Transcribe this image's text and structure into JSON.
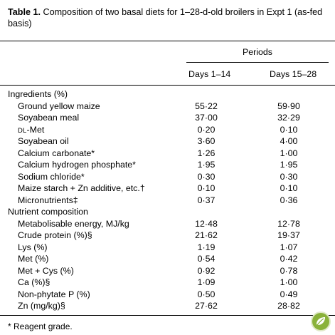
{
  "caption": {
    "label": "Table 1.",
    "text": " Composition of two basal diets for 1–28-d-old broilers in Expt 1 (as-fed basis)"
  },
  "header": {
    "group": "Periods",
    "col1": "Days 1–14",
    "col2": "Days 15–28"
  },
  "rows": [
    {
      "label": "Ingredients (%)",
      "v1": "",
      "v2": "",
      "section": true
    },
    {
      "label": "Ground yellow maize",
      "v1": "55·22",
      "v2": "59·90"
    },
    {
      "label": "Soyabean meal",
      "v1": "37·00",
      "v2": "32·29"
    },
    {
      "label_sc": "DL",
      "label_rest": "-Met",
      "v1": "0·20",
      "v2": "0·10"
    },
    {
      "label": "Soyabean oil",
      "v1": "3·60",
      "v2": "4·00"
    },
    {
      "label": "Calcium carbonate*",
      "v1": "1·26",
      "v2": "1·00"
    },
    {
      "label": "Calcium hydrogen phosphate*",
      "v1": "1·95",
      "v2": "1·95"
    },
    {
      "label": "Sodium chloride*",
      "v1": "0·30",
      "v2": "0·30"
    },
    {
      "label": "Maize starch + Zn additive, etc.†",
      "v1": "0·10",
      "v2": "0·10"
    },
    {
      "label": "Micronutrients‡",
      "v1": "0·37",
      "v2": "0·36"
    },
    {
      "label": "Nutrient composition",
      "v1": "",
      "v2": "",
      "section": true
    },
    {
      "label": "Metabolisable energy, MJ/kg",
      "v1": "12·48",
      "v2": "12·78"
    },
    {
      "label": "Crude protein (%)§",
      "v1": "21·62",
      "v2": "19·37"
    },
    {
      "label": "Lys (%)",
      "v1": "1·19",
      "v2": "1·07"
    },
    {
      "label": "Met (%)",
      "v1": "0·54",
      "v2": "0·42"
    },
    {
      "label": "Met + Cys (%)",
      "v1": "0·92",
      "v2": "0·78"
    },
    {
      "label": "Ca (%)§",
      "v1": "1·09",
      "v2": "1·00"
    },
    {
      "label": "Non-phytate P (%)",
      "v1": "0·50",
      "v2": "0·49"
    },
    {
      "label": "Zn (mg/kg)§",
      "v1": "27·62",
      "v2": "28·82"
    }
  ],
  "footnote": "* Reagent grade.",
  "badge_icon": "leaf-badge-icon"
}
